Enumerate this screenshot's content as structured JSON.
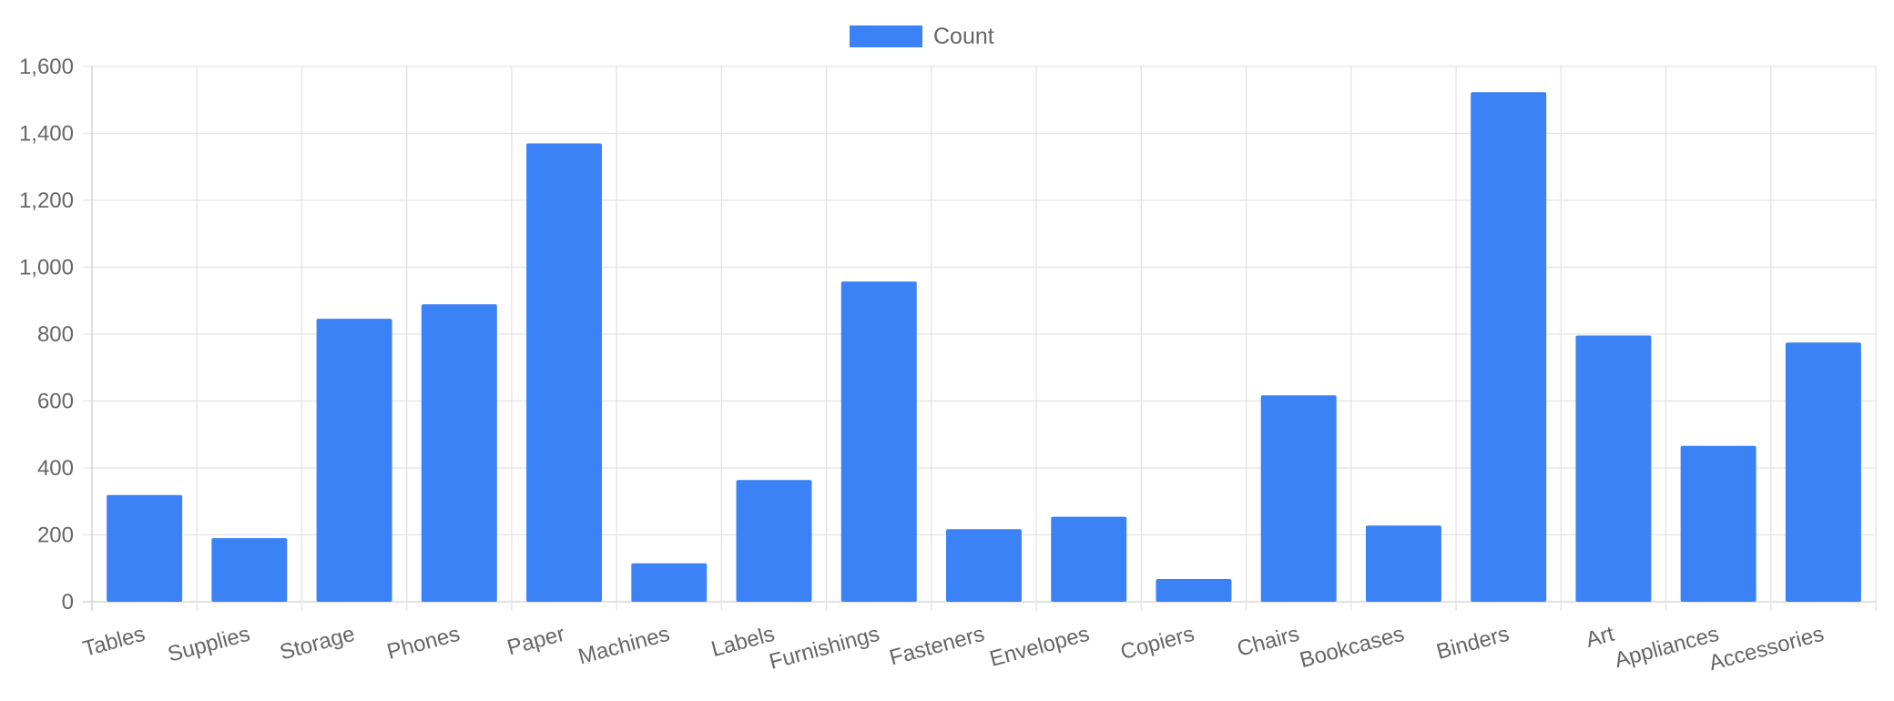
{
  "chart_data": {
    "type": "bar",
    "categories": [
      "Tables",
      "Supplies",
      "Storage",
      "Phones",
      "Paper",
      "Machines",
      "Labels",
      "Furnishings",
      "Fasteners",
      "Envelopes",
      "Copiers",
      "Chairs",
      "Bookcases",
      "Binders",
      "Art",
      "Appliances",
      "Accessories"
    ],
    "series": [
      {
        "name": "Count",
        "color": "#3b82f6",
        "values": [
          319,
          190,
          846,
          889,
          1370,
          115,
          364,
          957,
          217,
          254,
          68,
          617,
          228,
          1523,
          796,
          466,
          775
        ]
      }
    ],
    "ylim": [
      0,
      1600
    ],
    "y_ticks": [
      "0",
      "200",
      "400",
      "600",
      "800",
      "1,000",
      "1,200",
      "1,400",
      "1,600"
    ],
    "grid": true,
    "legend_position": "top-center"
  }
}
